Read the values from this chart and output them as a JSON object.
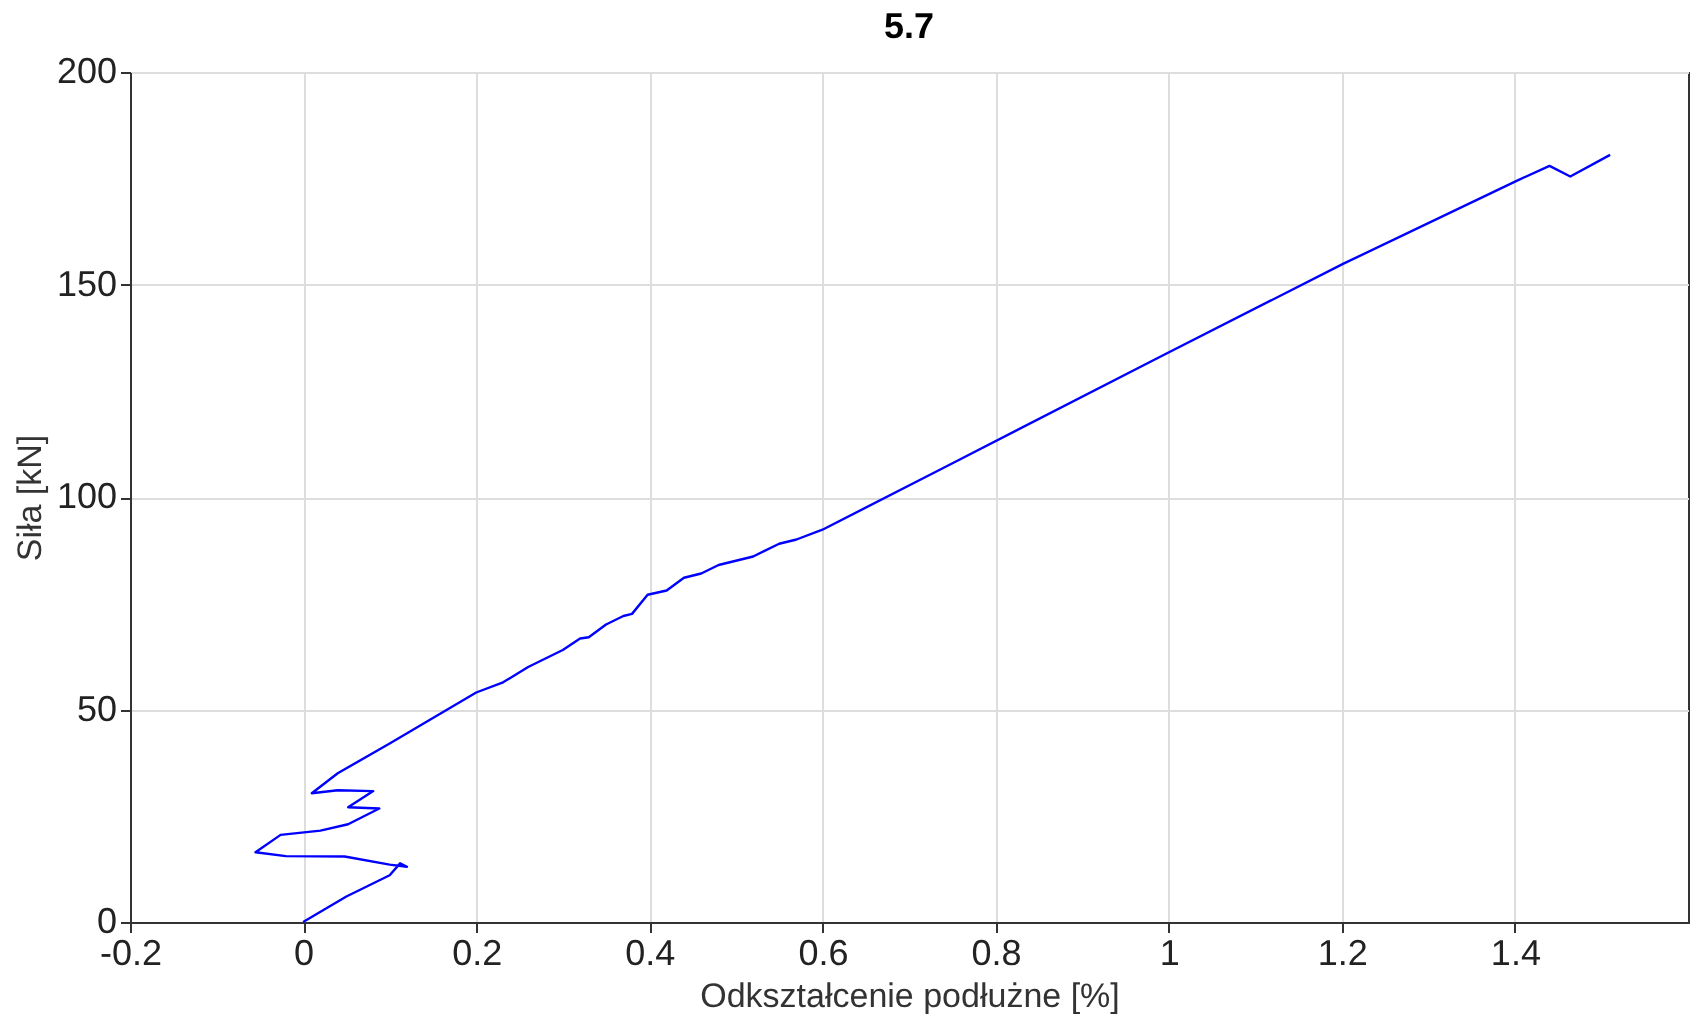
{
  "chart_data": {
    "type": "line",
    "title": "5.7",
    "xlabel": "Odkształcenie podłużne [%]",
    "ylabel": "Siła [kN]",
    "xlim": [
      -0.2,
      1.6
    ],
    "xticks": [
      -0.2,
      0,
      0.2,
      0.4,
      0.6,
      0.8,
      1,
      1.2,
      1.4
    ],
    "ylim": [
      0,
      200
    ],
    "yticks": [
      0,
      50,
      100,
      150,
      200
    ],
    "grid": true,
    "legend": false,
    "marker": "none",
    "line_style": "solid",
    "series": [
      {
        "color": "#0000ff",
        "x": [
          0.0,
          0.05,
          0.1,
          0.112,
          0.12,
          0.1,
          0.048,
          -0.02,
          -0.055,
          -0.026,
          0.02,
          0.052,
          0.088,
          0.052,
          0.081,
          0.04,
          0.01,
          0.04,
          0.1,
          0.2,
          0.231,
          0.26,
          0.28,
          0.3,
          0.32,
          0.33,
          0.35,
          0.37,
          0.38,
          0.398,
          0.42,
          0.44,
          0.46,
          0.48,
          0.5,
          0.52,
          0.55,
          0.57,
          0.6,
          0.748,
          0.993,
          1.202,
          1.402,
          1.44,
          1.464,
          1.51
        ],
        "values": [
          0,
          6,
          11,
          13.8,
          13,
          13.5,
          15.4,
          15.5,
          16.4,
          20.5,
          21.5,
          23,
          26.7,
          27,
          30.8,
          31,
          30.3,
          35,
          42,
          54,
          56.4,
          60,
          62,
          64,
          66.7,
          67,
          70,
          72,
          72.5,
          77,
          78,
          81,
          82,
          84,
          85,
          86,
          89,
          90,
          92.3,
          107.7,
          133.3,
          154.9,
          174.4,
          177.9,
          175.4,
          180.5
        ]
      }
    ]
  }
}
